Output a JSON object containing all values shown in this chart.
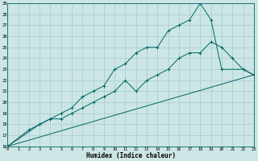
{
  "xlabel": "Humidex (Indice chaleur)",
  "bg_color": "#cce5e5",
  "grid_color": "#aad0d0",
  "line_color": "#006666",
  "xlim": [
    0,
    23
  ],
  "ylim": [
    16,
    29
  ],
  "xticks": [
    0,
    1,
    2,
    3,
    4,
    5,
    6,
    7,
    8,
    9,
    10,
    11,
    12,
    13,
    14,
    15,
    16,
    17,
    18,
    19,
    20,
    21,
    22,
    23
  ],
  "yticks": [
    16,
    17,
    18,
    19,
    20,
    21,
    22,
    23,
    24,
    25,
    26,
    27,
    28,
    29
  ],
  "line1_x": [
    0,
    2,
    3,
    4,
    5,
    6,
    7,
    8,
    9,
    10,
    11,
    12,
    13,
    14,
    15,
    16,
    17,
    18,
    19,
    20,
    21,
    22,
    23
  ],
  "line1_y": [
    16,
    17.5,
    18,
    18.5,
    18.5,
    19,
    19.5,
    20,
    20.5,
    21,
    22,
    21,
    22,
    22.5,
    23,
    24,
    24.5,
    24.5,
    25.5,
    25,
    24,
    23,
    22.5
  ],
  "line2_x": [
    0,
    3,
    4,
    5,
    6,
    7,
    8,
    9,
    10,
    11,
    12,
    13,
    14,
    15,
    16,
    17,
    18,
    19,
    20,
    22,
    23
  ],
  "line2_y": [
    16,
    18,
    18.5,
    19,
    19.5,
    20.5,
    21,
    21.5,
    23,
    23.5,
    24.5,
    25,
    25,
    26.5,
    27,
    27.5,
    29,
    27.5,
    23,
    23,
    22.5
  ],
  "line3_x": [
    0,
    23
  ],
  "line3_y": [
    16,
    22.5
  ]
}
